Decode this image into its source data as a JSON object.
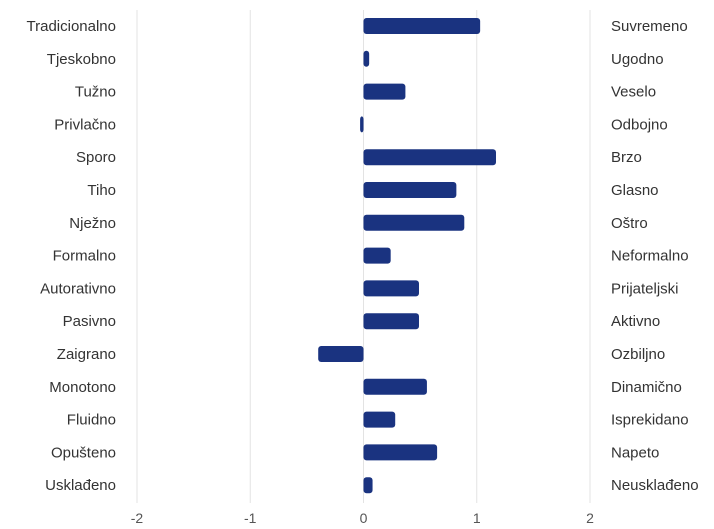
{
  "chart_data": {
    "type": "bar",
    "orientation": "horizontal",
    "categories_left": [
      "Tradicionalno",
      "Tjeskobno",
      "Tužno",
      "Privlačno",
      "Sporo",
      "Tiho",
      "Nježno",
      "Formalno",
      "Autorativno",
      "Pasivno",
      "Zaigrano",
      "Monotono",
      "Fluidno",
      "Opušteno",
      "Usklađeno"
    ],
    "categories_right": [
      "Suvremeno",
      "Ugodno",
      "Veselo",
      "Odbojno",
      "Brzo",
      "Glasno",
      "Oštro",
      "Neformalno",
      "Prijateljski",
      "Aktivno",
      "Ozbiljno",
      "Dinamično",
      "Isprekidano",
      "Napeto",
      "Neusklađeno"
    ],
    "values": [
      1.03,
      0.05,
      0.37,
      -0.03,
      1.17,
      0.82,
      0.89,
      0.24,
      0.49,
      0.49,
      -0.4,
      0.56,
      0.28,
      0.65,
      0.08
    ],
    "xlim": [
      -2,
      2
    ],
    "xticks": [
      -2,
      -1,
      0,
      1,
      2
    ],
    "grid": true,
    "bar_color": "#1a3380"
  }
}
